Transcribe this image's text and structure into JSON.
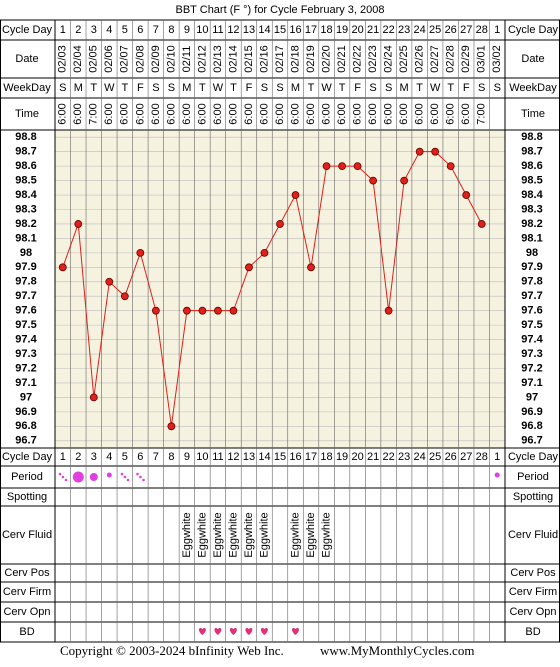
{
  "chart_data": {
    "type": "line",
    "title": "BBT Chart (F °) for Cycle February 3, 2008",
    "categories": [
      "1",
      "2",
      "3",
      "4",
      "5",
      "6",
      "7",
      "8",
      "9",
      "10",
      "11",
      "12",
      "13",
      "14",
      "15",
      "16",
      "17",
      "18",
      "19",
      "20",
      "21",
      "22",
      "23",
      "24",
      "25",
      "26",
      "27",
      "28",
      "1"
    ],
    "dates": [
      "02/03",
      "02/04",
      "02/05",
      "02/06",
      "02/07",
      "02/08",
      "02/09",
      "02/10",
      "02/11",
      "02/12",
      "02/13",
      "02/14",
      "02/15",
      "02/16",
      "02/17",
      "02/18",
      "02/19",
      "02/20",
      "02/21",
      "02/22",
      "02/23",
      "02/24",
      "02/25",
      "02/26",
      "02/27",
      "02/28",
      "02/29",
      "03/01",
      "03/02"
    ],
    "weekdays": [
      "S",
      "M",
      "T",
      "W",
      "T",
      "F",
      "S",
      "S",
      "M",
      "T",
      "W",
      "T",
      "F",
      "S",
      "S",
      "M",
      "T",
      "W",
      "T",
      "F",
      "S",
      "S",
      "M",
      "T",
      "W",
      "T",
      "F",
      "S",
      "S"
    ],
    "times": [
      "6:00",
      "6:00",
      "7:00",
      "6:00",
      "6:00",
      "6:00",
      "6:00",
      "6:00",
      "6:00",
      "6:00",
      "6:00",
      "6:00",
      "6:00",
      "6:00",
      "6:00",
      "6:00",
      "6:00",
      "6:00",
      "6:00",
      "6:00",
      "6:00",
      "6:00",
      "6:00",
      "6:00",
      "6:00",
      "6:00",
      "6:00",
      "7:00",
      null
    ],
    "values": [
      97.9,
      98.2,
      97.0,
      97.8,
      97.7,
      98.0,
      97.6,
      96.8,
      97.6,
      97.6,
      97.6,
      97.6,
      97.9,
      98.0,
      98.2,
      98.4,
      97.9,
      98.6,
      98.6,
      98.6,
      98.5,
      97.6,
      98.5,
      98.7,
      98.7,
      98.6,
      98.4,
      98.2,
      null
    ],
    "color": "#e0201a",
    "ylim": [
      96.65,
      98.85
    ],
    "yticks": [
      98.8,
      98.7,
      98.6,
      98.5,
      98.4,
      98.3,
      98.2,
      98.1,
      98.0,
      97.9,
      97.8,
      97.7,
      97.6,
      97.5,
      97.4,
      97.3,
      97.2,
      97.1,
      97.0,
      96.9,
      96.8,
      96.7
    ],
    "grid": true,
    "cerv_fluid": [
      null,
      null,
      null,
      null,
      null,
      null,
      null,
      null,
      "Eggwhite",
      "Eggwhite",
      "Eggwhite",
      "Eggwhite",
      "Eggwhite",
      "Eggwhite",
      null,
      "Eggwhite",
      "Eggwhite",
      "Eggwhite",
      null,
      null,
      null,
      null,
      null,
      null,
      null,
      null,
      null,
      null,
      null
    ]
  },
  "row_labels": {
    "cycle_day": "Cycle Day",
    "date": "Date",
    "weekday": "WeekDay",
    "time": "Time",
    "period": "Period",
    "spotting": "Spotting",
    "cerv_fluid": "Cerv Fluid",
    "cerv_pos": "Cerv Pos",
    "cerv_firm": "Cerv Firm",
    "cerv_opn": "Cerv Opn",
    "bd": "BD"
  },
  "footer": {
    "copyright": "Copyright © 2003-2024 bInfinity Web Inc.",
    "site": "www.MyMonthlyCycles.com"
  }
}
